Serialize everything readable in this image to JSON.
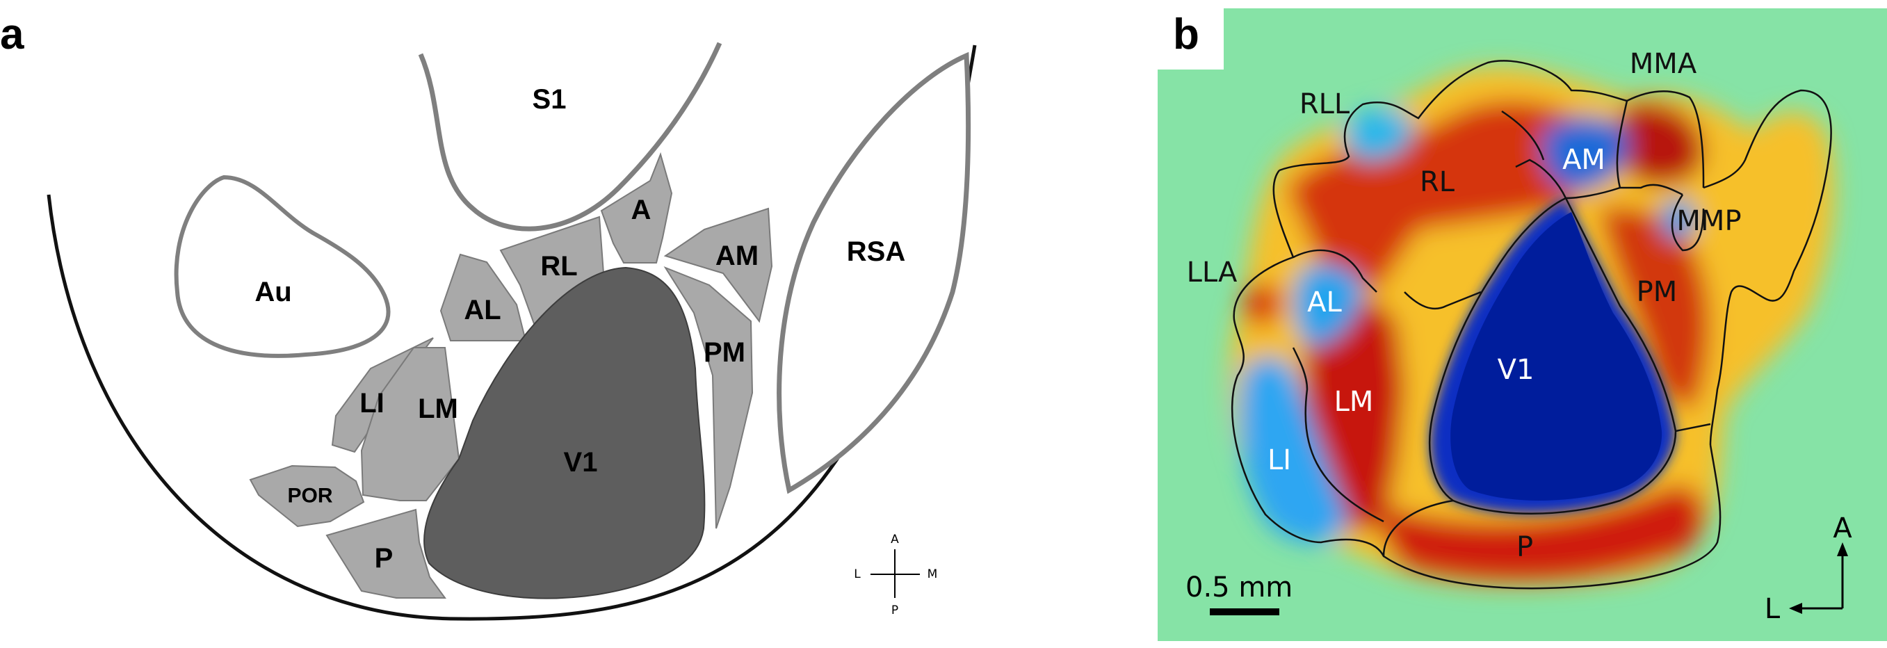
{
  "panels": {
    "a": {
      "letter": "a",
      "outer_areas": [
        "S1",
        "Au",
        "RSA"
      ],
      "areas": [
        "A",
        "RL",
        "AL",
        "AM",
        "PM",
        "LI",
        "LM",
        "V1",
        "POR",
        "P"
      ],
      "compass": {
        "up": "A",
        "down": "P",
        "left": "L",
        "right": "M"
      },
      "colors": {
        "light_area": "#a9a9a9",
        "dark_area": "#5e5e5e",
        "outline": "#7f7f7f"
      }
    },
    "b": {
      "letter": "b",
      "areas": [
        "RLL",
        "MMA",
        "RL",
        "AM",
        "MMP",
        "LLA",
        "AL",
        "PM",
        "V1",
        "LM",
        "LI",
        "P"
      ],
      "scale_bar": "0.5 mm",
      "compass": {
        "up": "A",
        "left": "L"
      },
      "colors": {
        "background": "#86e3a6",
        "positive": "#d21a10",
        "negative": "#001d9c"
      }
    }
  }
}
